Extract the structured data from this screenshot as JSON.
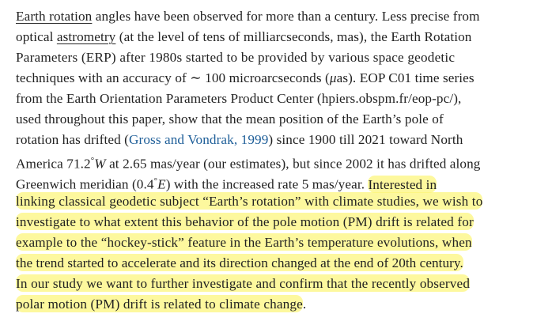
{
  "paragraph": {
    "l1": {
      "link": "Earth rotation",
      "rest": " angles have been observed for more than a century. Less precise from"
    },
    "l2": {
      "pre": "optical ",
      "link": "astrometry",
      "rest": " (at the level of tens of milliarcseconds, mas), the Earth Rotation"
    },
    "l3": {
      "text": "Parameters (ERP) after 1980s started to be provided by various space geodetic"
    },
    "l4": {
      "text_a": "techniques with an accuracy of ",
      "sym": "∼",
      "text_b": " 100 microarcseconds (",
      "unit": "μ",
      "text_c": "as). EOP C01 time series"
    },
    "l5": {
      "text": "from the Earth Orientation Parameters Product Center (hpiers.obspm.fr/eop-pc/),"
    },
    "l6": {
      "text": "used throughout this paper, show that the mean position of the Earth’s pole of"
    },
    "l7": {
      "pre": "rotation has drifted (",
      "cite": "Gross and Vondrak, 1999",
      "rest": ") since 1900 till 2021 toward North"
    },
    "l8": {
      "pre": "America 71.2",
      "deg": "°",
      "W": "W",
      "rest": " at 2.65 mas/year (our estimates), but since 2002 it has drifted along"
    },
    "l9": {
      "pre": "Greenwich meridian (0.4",
      "deg": "°",
      "E": "E",
      "mid": ") with the increased rate 5 mas/year. ",
      "hl": "Interested in"
    },
    "l10": {
      "hl": "linking classical geodetic subject “Earth’s rotation” with climate studies, we wish to"
    },
    "l11": {
      "hl": "investigate to what extent this behavior of the pole motion (PM) drift is related for"
    },
    "l12": {
      "hl": "example to the “hockey-stick” feature in the Earth’s temperature evolutions, when"
    },
    "l13": {
      "hl": "the trend started to accelerate and its direction changed at the end of 20th century."
    },
    "l14": {
      "hl": "In our study we want to further investigate and confirm that the recently observed"
    },
    "l15": {
      "hl": "polar motion (PM) drift is related to climate change",
      "end": "."
    }
  },
  "colors": {
    "text": "#222222",
    "citation": "#1f5f99",
    "highlight": "#fcf578"
  }
}
